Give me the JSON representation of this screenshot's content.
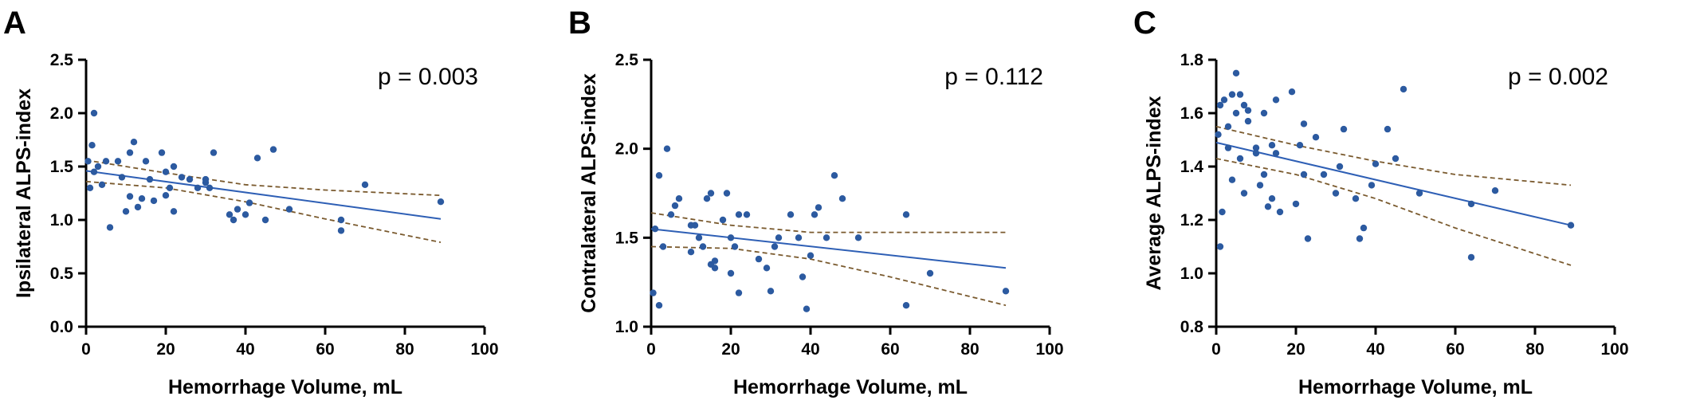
{
  "colors": {
    "point": "#2c5aa0",
    "fit": "#2e5fb5",
    "ci": "#7a5a2e",
    "axis": "#000000"
  },
  "chart_data": [
    {
      "type": "scatter",
      "panel_letter": "A",
      "annotation": "p = 0.003",
      "xlabel": "Hemorrhage Volume, mL",
      "ylabel": "Ipsilateral ALPS-index",
      "xlim": [
        0,
        100
      ],
      "ylim": [
        0,
        2.5
      ],
      "xticks": [
        0,
        20,
        40,
        60,
        80,
        100
      ],
      "yticks": [
        0.0,
        0.5,
        1.0,
        1.5,
        2.0,
        2.5
      ],
      "ytick_labels": [
        "0.0",
        "0.5",
        "1.0",
        "1.5",
        "2.0",
        "2.5"
      ],
      "grid": false,
      "points": [
        [
          0.5,
          1.55
        ],
        [
          1,
          1.3
        ],
        [
          1.5,
          1.7
        ],
        [
          2,
          1.45
        ],
        [
          2,
          2.0
        ],
        [
          3,
          1.5
        ],
        [
          4,
          1.33
        ],
        [
          5,
          1.55
        ],
        [
          6,
          0.93
        ],
        [
          8,
          1.55
        ],
        [
          9,
          1.4
        ],
        [
          10,
          1.08
        ],
        [
          11,
          1.63
        ],
        [
          11,
          1.22
        ],
        [
          12,
          1.73
        ],
        [
          13,
          1.12
        ],
        [
          14,
          1.2
        ],
        [
          15,
          1.55
        ],
        [
          16,
          1.38
        ],
        [
          17,
          1.18
        ],
        [
          19,
          1.63
        ],
        [
          20,
          1.23
        ],
        [
          20,
          1.45
        ],
        [
          21,
          1.3
        ],
        [
          22,
          1.5
        ],
        [
          22,
          1.08
        ],
        [
          24,
          1.4
        ],
        [
          26,
          1.38
        ],
        [
          28,
          1.3
        ],
        [
          30,
          1.38
        ],
        [
          30,
          1.35
        ],
        [
          31,
          1.3
        ],
        [
          32,
          1.63
        ],
        [
          36,
          1.05
        ],
        [
          37,
          1.0
        ],
        [
          38,
          1.1
        ],
        [
          40,
          1.05
        ],
        [
          41,
          1.16
        ],
        [
          43,
          1.58
        ],
        [
          45,
          1.0
        ],
        [
          47,
          1.66
        ],
        [
          51,
          1.1
        ],
        [
          64,
          1.0
        ],
        [
          64,
          0.9
        ],
        [
          70,
          1.33
        ],
        [
          89,
          1.17
        ]
      ],
      "fit": [
        [
          0,
          1.46
        ],
        [
          89,
          1.01
        ]
      ],
      "ci_upper": [
        [
          0,
          1.56
        ],
        [
          20,
          1.44
        ],
        [
          40,
          1.33
        ],
        [
          60,
          1.28
        ],
        [
          89,
          1.23
        ]
      ],
      "ci_lower": [
        [
          0,
          1.36
        ],
        [
          20,
          1.3
        ],
        [
          40,
          1.17
        ],
        [
          60,
          1.01
        ],
        [
          89,
          0.79
        ]
      ]
    },
    {
      "type": "scatter",
      "panel_letter": "B",
      "annotation": "p = 0.112",
      "xlabel": "Hemorrhage Volume, mL",
      "ylabel": "Contralateral ALPS-index",
      "xlim": [
        0,
        100
      ],
      "ylim": [
        1.0,
        2.5
      ],
      "xticks": [
        0,
        20,
        40,
        60,
        80,
        100
      ],
      "yticks": [
        1.0,
        1.5,
        2.0,
        2.5
      ],
      "ytick_labels": [
        "1.0",
        "1.5",
        "2.0",
        "2.5"
      ],
      "grid": false,
      "points": [
        [
          0.5,
          1.19
        ],
        [
          1,
          1.55
        ],
        [
          2,
          1.85
        ],
        [
          2,
          1.12
        ],
        [
          3,
          1.45
        ],
        [
          4,
          2.0
        ],
        [
          5,
          1.63
        ],
        [
          6,
          1.68
        ],
        [
          7,
          1.72
        ],
        [
          10,
          1.57
        ],
        [
          10,
          1.42
        ],
        [
          11,
          1.57
        ],
        [
          12,
          1.5
        ],
        [
          13,
          1.45
        ],
        [
          14,
          1.72
        ],
        [
          15,
          1.75
        ],
        [
          15,
          1.35
        ],
        [
          16,
          1.37
        ],
        [
          16,
          1.33
        ],
        [
          18,
          1.6
        ],
        [
          19,
          1.75
        ],
        [
          20,
          1.3
        ],
        [
          20,
          1.5
        ],
        [
          21,
          1.45
        ],
        [
          22,
          1.63
        ],
        [
          22,
          1.19
        ],
        [
          24,
          1.63
        ],
        [
          27,
          1.38
        ],
        [
          29,
          1.33
        ],
        [
          30,
          1.2
        ],
        [
          31,
          1.45
        ],
        [
          32,
          1.5
        ],
        [
          35,
          1.63
        ],
        [
          37,
          1.5
        ],
        [
          38,
          1.28
        ],
        [
          39,
          1.1
        ],
        [
          40,
          1.4
        ],
        [
          41,
          1.63
        ],
        [
          42,
          1.67
        ],
        [
          44,
          1.5
        ],
        [
          46,
          1.85
        ],
        [
          48,
          1.72
        ],
        [
          52,
          1.5
        ],
        [
          64,
          1.63
        ],
        [
          64,
          1.12
        ],
        [
          70,
          1.3
        ],
        [
          89,
          1.2
        ]
      ],
      "fit": [
        [
          0,
          1.55
        ],
        [
          89,
          1.33
        ]
      ],
      "ci_upper": [
        [
          0,
          1.64
        ],
        [
          20,
          1.57
        ],
        [
          40,
          1.53
        ],
        [
          60,
          1.53
        ],
        [
          89,
          1.53
        ]
      ],
      "ci_lower": [
        [
          0,
          1.45
        ],
        [
          20,
          1.44
        ],
        [
          40,
          1.38
        ],
        [
          60,
          1.28
        ],
        [
          89,
          1.12
        ]
      ]
    },
    {
      "type": "scatter",
      "panel_letter": "C",
      "annotation": "p = 0.002",
      "xlabel": "Hemorrhage Volume, mL",
      "ylabel": "Average ALPS-index",
      "xlim": [
        0,
        100
      ],
      "ylim": [
        0.8,
        1.8
      ],
      "xticks": [
        0,
        20,
        40,
        60,
        80,
        100
      ],
      "yticks": [
        0.8,
        1.0,
        1.2,
        1.4,
        1.6,
        1.8
      ],
      "ytick_labels": [
        "0.8",
        "1.0",
        "1.2",
        "1.4",
        "1.6",
        "1.8"
      ],
      "grid": false,
      "points": [
        [
          0.5,
          1.52
        ],
        [
          1,
          1.1
        ],
        [
          1,
          1.63
        ],
        [
          1.5,
          1.23
        ],
        [
          2,
          1.65
        ],
        [
          3,
          1.55
        ],
        [
          3,
          1.47
        ],
        [
          4,
          1.67
        ],
        [
          4,
          1.35
        ],
        [
          5,
          1.6
        ],
        [
          5,
          1.75
        ],
        [
          6,
          1.67
        ],
        [
          6,
          1.43
        ],
        [
          7,
          1.63
        ],
        [
          7,
          1.3
        ],
        [
          8,
          1.61
        ],
        [
          8,
          1.57
        ],
        [
          10,
          1.47
        ],
        [
          10,
          1.45
        ],
        [
          11,
          1.33
        ],
        [
          12,
          1.6
        ],
        [
          12,
          1.37
        ],
        [
          13,
          1.25
        ],
        [
          14,
          1.48
        ],
        [
          14,
          1.28
        ],
        [
          15,
          1.45
        ],
        [
          15,
          1.65
        ],
        [
          16,
          1.23
        ],
        [
          19,
          1.68
        ],
        [
          20,
          1.26
        ],
        [
          21,
          1.48
        ],
        [
          22,
          1.37
        ],
        [
          22,
          1.56
        ],
        [
          23,
          1.13
        ],
        [
          25,
          1.51
        ],
        [
          27,
          1.37
        ],
        [
          30,
          1.3
        ],
        [
          31,
          1.4
        ],
        [
          32,
          1.54
        ],
        [
          35,
          1.28
        ],
        [
          36,
          1.13
        ],
        [
          37,
          1.17
        ],
        [
          39,
          1.33
        ],
        [
          40,
          1.41
        ],
        [
          43,
          1.54
        ],
        [
          45,
          1.43
        ],
        [
          47,
          1.69
        ],
        [
          51,
          1.3
        ],
        [
          64,
          1.06
        ],
        [
          64,
          1.26
        ],
        [
          70,
          1.31
        ],
        [
          89,
          1.18
        ]
      ],
      "fit": [
        [
          0,
          1.49
        ],
        [
          89,
          1.18
        ]
      ],
      "ci_upper": [
        [
          0,
          1.55
        ],
        [
          20,
          1.48
        ],
        [
          40,
          1.42
        ],
        [
          60,
          1.37
        ],
        [
          89,
          1.33
        ]
      ],
      "ci_lower": [
        [
          0,
          1.43
        ],
        [
          20,
          1.37
        ],
        [
          40,
          1.28
        ],
        [
          60,
          1.17
        ],
        [
          89,
          1.03
        ]
      ]
    }
  ]
}
